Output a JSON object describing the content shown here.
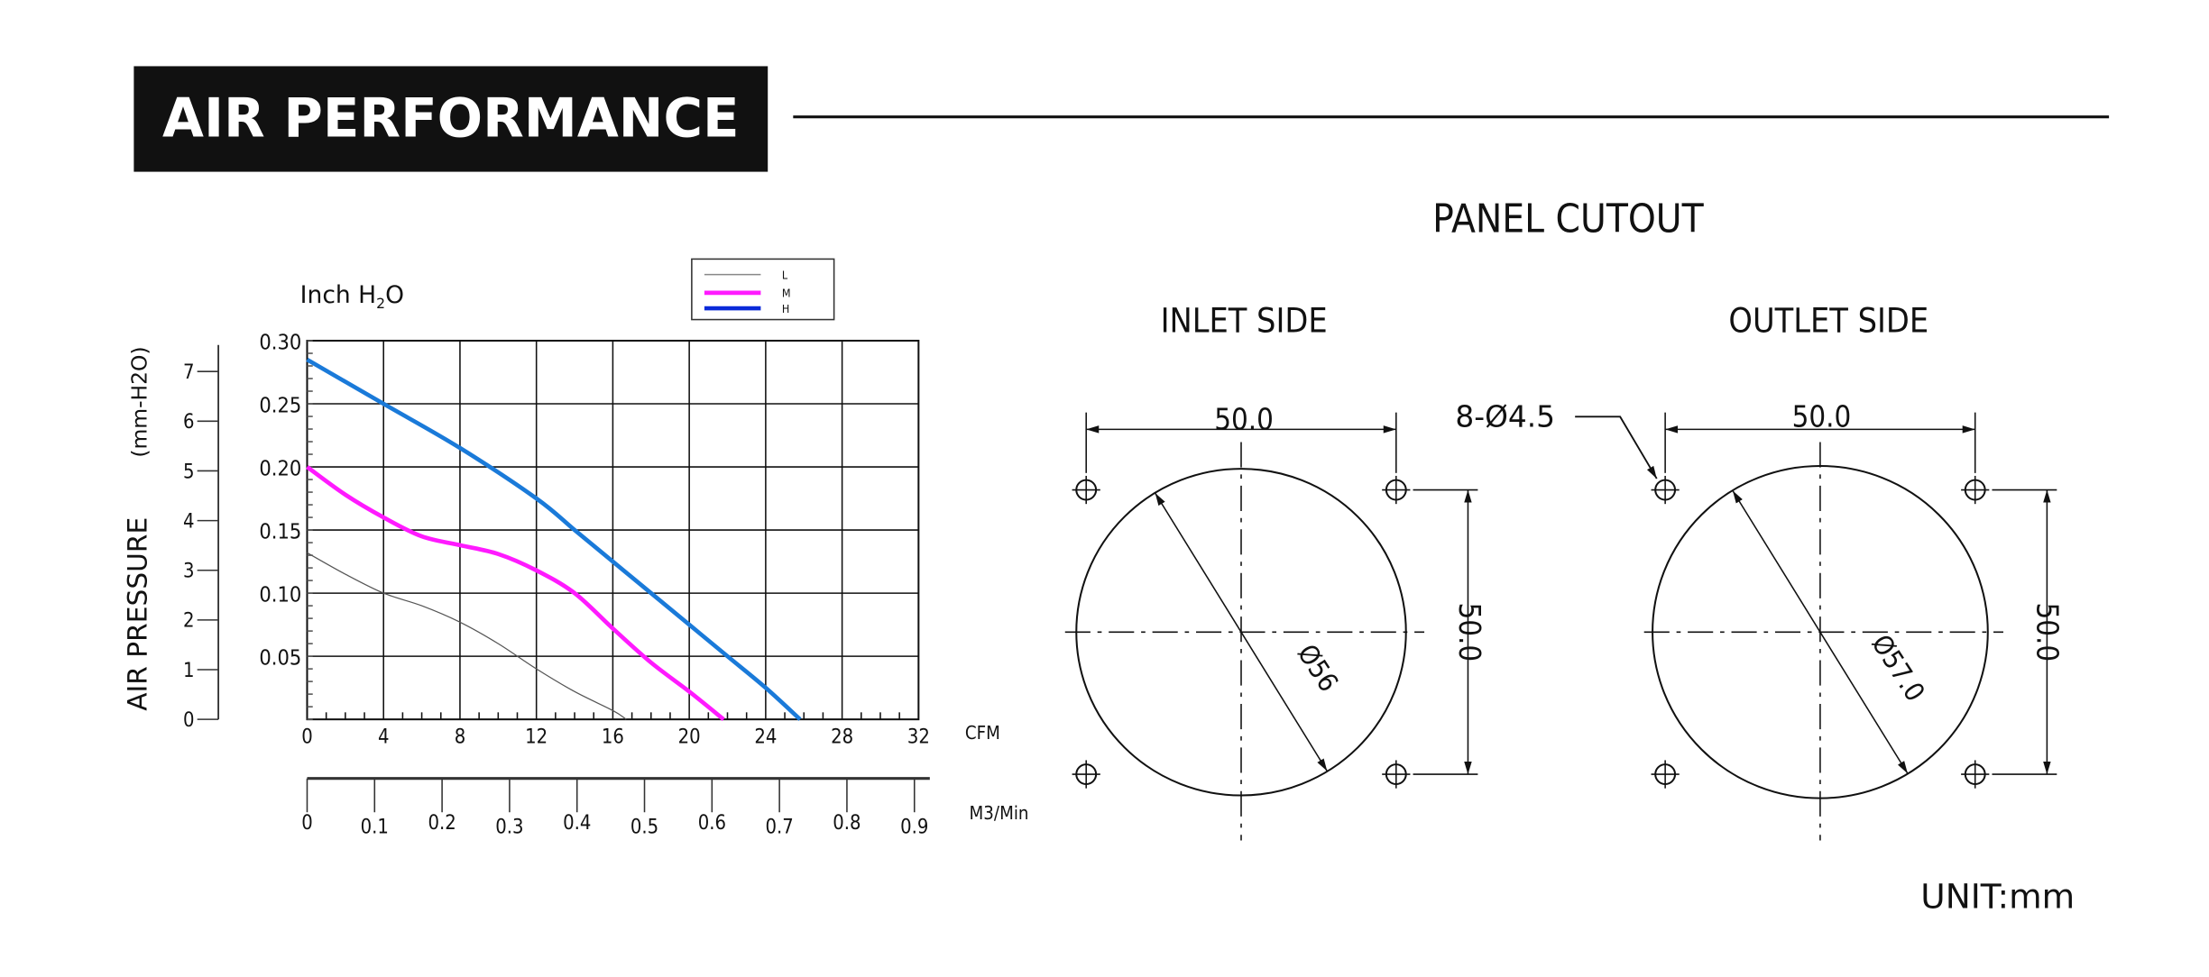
{
  "header": {
    "title": "AIR PERFORMANCE"
  },
  "chart_data": {
    "type": "line",
    "ylabel": "AIR PRESSURE",
    "ylabel_secondary": "(mm-H2O)",
    "yunit_top": "Inch H2O",
    "xlabel": "CFM",
    "xlabel_secondary": "M3/Min",
    "xlim": [
      0,
      32
    ],
    "ylim": [
      0,
      0.3
    ],
    "grid": true,
    "legend_position": "top-right",
    "x_ticks": [
      "0",
      "4",
      "8",
      "12",
      "16",
      "20",
      "24",
      "28",
      "32"
    ],
    "y_ticks": [
      "0.05",
      "0.10",
      "0.15",
      "0.20",
      "0.25",
      "0.30"
    ],
    "y2_ticks": [
      "0",
      "1",
      "2",
      "3",
      "4",
      "5",
      "6",
      "7"
    ],
    "x2_ticks": [
      "0",
      "0.1",
      "0.2",
      "0.3",
      "0.4",
      "0.5",
      "0.6",
      "0.7",
      "0.8",
      "0.9"
    ],
    "series": [
      {
        "name": "L",
        "color": "#555555",
        "x": [
          0,
          2,
          4,
          6,
          8,
          10,
          12,
          14,
          16,
          16.7
        ],
        "y": [
          0.132,
          0.115,
          0.1,
          0.09,
          0.077,
          0.06,
          0.04,
          0.022,
          0.007,
          0
        ]
      },
      {
        "name": "M",
        "color": "#ff1aff",
        "x": [
          0,
          2,
          4,
          6,
          8,
          10,
          12,
          14,
          16,
          18,
          20,
          21.8
        ],
        "y": [
          0.2,
          0.178,
          0.16,
          0.145,
          0.138,
          0.131,
          0.118,
          0.1,
          0.072,
          0.045,
          0.022,
          0
        ]
      },
      {
        "name": "H",
        "color": "#1a7ad9",
        "x": [
          0,
          4,
          8,
          12,
          14,
          16,
          18,
          20,
          22,
          24,
          25.8
        ],
        "y": [
          0.285,
          0.25,
          0.215,
          0.175,
          0.15,
          0.125,
          0.1,
          0.075,
          0.05,
          0.025,
          0
        ]
      }
    ],
    "legend_colors": {
      "L": "#888888",
      "M": "#ff1aff",
      "H": "#0a2ad9"
    }
  },
  "cutout": {
    "title": "PANEL CUTOUT",
    "inlet": {
      "label": "INLET SIDE",
      "width": "50.0",
      "height": "50.0",
      "diameter": "Ø56"
    },
    "outlet": {
      "label": "OUTLET SIDE",
      "width": "50.0",
      "height": "50.0",
      "diameter": "Ø57.0",
      "holes": "8-Ø4.5"
    },
    "unit": "UNIT:mm"
  }
}
